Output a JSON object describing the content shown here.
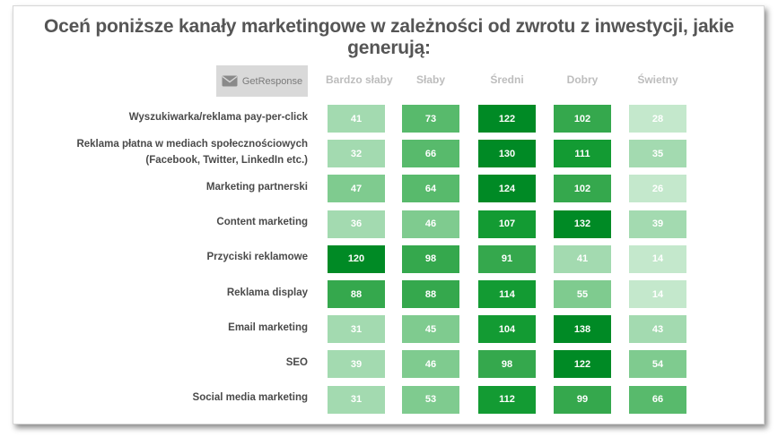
{
  "title": "Oceń poniższe kanały marketingowe w zależności od zwrotu z inwestycji, jakie generują:",
  "logo": {
    "text": "GetResponse",
    "icon": "envelope-icon"
  },
  "colors": {
    "scale": [
      "#c4e8cc",
      "#a3dab0",
      "#7fcb8f",
      "#58ba6c",
      "#35a84d",
      "#139b33",
      "#008a25"
    ],
    "header": "#bdbdbd",
    "label": "#4a4a4a"
  },
  "chart_data": {
    "type": "heatmap",
    "title": "Oceń poniższe kanały marketingowe w zależności od zwrotu z inwestycji, jakie generują:",
    "columns": [
      "Bardzo słaby",
      "Słaby",
      "Średni",
      "Dobry",
      "Świetny"
    ],
    "rows": [
      {
        "label": [
          "Wyszukiwarka/reklama pay-per-click"
        ],
        "values": [
          41,
          73,
          122,
          102,
          28
        ]
      },
      {
        "label": [
          "Reklama płatna w mediach społecznościowych",
          "(Facebook, Twitter, LinkedIn etc.)"
        ],
        "values": [
          32,
          66,
          130,
          111,
          35
        ]
      },
      {
        "label": [
          "Marketing partnerski"
        ],
        "values": [
          47,
          64,
          124,
          102,
          26
        ]
      },
      {
        "label": [
          "Content marketing"
        ],
        "values": [
          36,
          46,
          107,
          132,
          39
        ]
      },
      {
        "label": [
          "Przyciski reklamowe"
        ],
        "values": [
          120,
          98,
          91,
          41,
          14
        ]
      },
      {
        "label": [
          "Reklama display"
        ],
        "values": [
          88,
          88,
          114,
          55,
          14
        ]
      },
      {
        "label": [
          "Email marketing"
        ],
        "values": [
          31,
          45,
          104,
          138,
          43
        ]
      },
      {
        "label": [
          "SEO"
        ],
        "values": [
          39,
          46,
          98,
          122,
          54
        ]
      },
      {
        "label": [
          "Social media marketing"
        ],
        "values": [
          31,
          53,
          112,
          99,
          66
        ]
      }
    ]
  }
}
